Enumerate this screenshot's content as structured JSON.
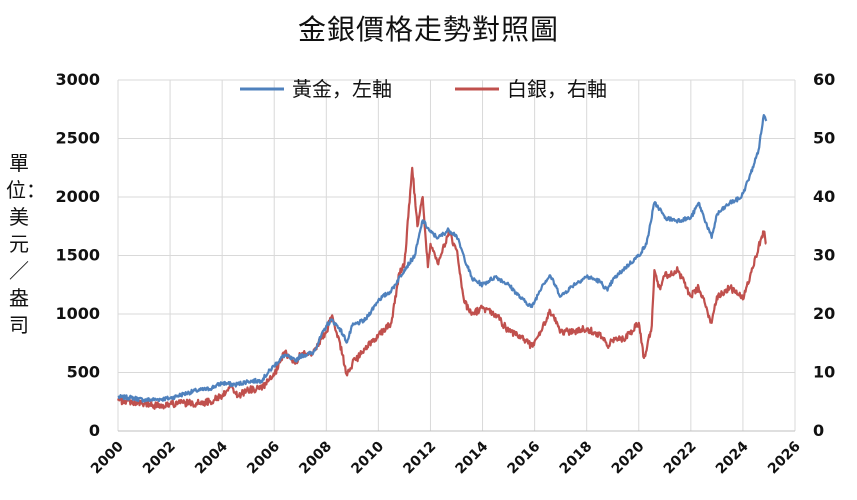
{
  "chart_data": {
    "type": "line",
    "title": "金銀價格走勢對照圖",
    "ylabel_left": "單位：美元／盎司",
    "ylim_left": [
      0,
      3000
    ],
    "ylim_right": [
      0,
      60
    ],
    "xlim": [
      2000,
      2026
    ],
    "grid": true,
    "legend": "top-center",
    "x_ticks": [
      "2000",
      "2002",
      "2004",
      "2006",
      "2008",
      "2010",
      "2012",
      "2014",
      "2016",
      "2018",
      "2020",
      "2022",
      "2024",
      "2026"
    ],
    "y_left_ticks": [
      "0",
      "500",
      "1000",
      "1500",
      "2000",
      "2500",
      "3000"
    ],
    "y_right_ticks": [
      "0",
      "10",
      "20",
      "30",
      "40",
      "50",
      "60"
    ],
    "series": [
      {
        "name": "黃金，左軸",
        "axis": "left",
        "color": "#4f81bd",
        "x": [
          2000.0,
          2000.5,
          2001.0,
          2001.5,
          2002.0,
          2002.5,
          2003.0,
          2003.5,
          2004.0,
          2004.5,
          2005.0,
          2005.5,
          2006.0,
          2006.4,
          2006.8,
          2007.0,
          2007.5,
          2008.0,
          2008.2,
          2008.5,
          2008.8,
          2009.0,
          2009.5,
          2010.0,
          2010.5,
          2011.0,
          2011.4,
          2011.7,
          2012.0,
          2012.3,
          2012.7,
          2013.0,
          2013.3,
          2013.6,
          2014.0,
          2014.5,
          2015.0,
          2015.5,
          2015.9,
          2016.3,
          2016.6,
          2017.0,
          2017.5,
          2018.0,
          2018.5,
          2018.8,
          2019.0,
          2019.5,
          2020.0,
          2020.3,
          2020.6,
          2020.8,
          2021.0,
          2021.5,
          2022.0,
          2022.3,
          2022.8,
          2023.0,
          2023.5,
          2023.9,
          2024.0,
          2024.3,
          2024.6,
          2024.8,
          2024.9
        ],
        "y": [
          290,
          285,
          265,
          270,
          280,
          315,
          345,
          360,
          410,
          395,
          425,
          430,
          560,
          650,
          600,
          640,
          670,
          900,
          950,
          880,
          760,
          900,
          950,
          1120,
          1200,
          1380,
          1500,
          1800,
          1700,
          1650,
          1720,
          1670,
          1480,
          1300,
          1250,
          1320,
          1250,
          1130,
          1060,
          1250,
          1330,
          1150,
          1250,
          1320,
          1280,
          1200,
          1290,
          1400,
          1500,
          1600,
          1950,
          1900,
          1820,
          1800,
          1820,
          1950,
          1650,
          1850,
          1950,
          1990,
          2030,
          2200,
          2400,
          2700,
          2650
        ]
      },
      {
        "name": "白銀，右軸",
        "axis": "right",
        "color": "#c0504d",
        "x": [
          2000.0,
          2000.5,
          2001.0,
          2001.5,
          2002.0,
          2002.5,
          2003.0,
          2003.5,
          2004.0,
          2004.3,
          2004.6,
          2005.0,
          2005.5,
          2006.0,
          2006.4,
          2006.8,
          2007.0,
          2007.5,
          2008.0,
          2008.2,
          2008.5,
          2008.8,
          2009.0,
          2009.5,
          2010.0,
          2010.5,
          2010.8,
          2011.0,
          2011.3,
          2011.5,
          2011.7,
          2011.9,
          2012.0,
          2012.3,
          2012.7,
          2013.0,
          2013.3,
          2013.6,
          2014.0,
          2014.5,
          2015.0,
          2015.5,
          2015.9,
          2016.3,
          2016.6,
          2017.0,
          2017.5,
          2018.0,
          2018.5,
          2018.8,
          2019.0,
          2019.5,
          2020.0,
          2020.2,
          2020.5,
          2020.6,
          2020.8,
          2021.0,
          2021.5,
          2022.0,
          2022.3,
          2022.8,
          2023.0,
          2023.5,
          2023.9,
          2024.0,
          2024.3,
          2024.6,
          2024.8,
          2024.9
        ],
        "y": [
          5.2,
          5.0,
          4.6,
          4.3,
          4.6,
          4.8,
          4.7,
          5.0,
          6.0,
          7.8,
          6.0,
          7.0,
          7.3,
          9.5,
          13.5,
          11.5,
          13.0,
          13.5,
          17.0,
          19.5,
          15.5,
          9.5,
          11.5,
          14.0,
          16.5,
          18.5,
          27.0,
          28.5,
          45.0,
          35.0,
          40.0,
          28.0,
          32.0,
          28.5,
          34.0,
          31.0,
          22.0,
          20.0,
          21.0,
          20.0,
          17.0,
          16.0,
          14.5,
          17.5,
          20.5,
          17.0,
          17.0,
          17.5,
          16.5,
          14.5,
          15.5,
          16.0,
          18.5,
          12.5,
          18.0,
          27.5,
          24.5,
          26.5,
          27.5,
          23.0,
          24.5,
          18.5,
          23.0,
          24.5,
          23.0,
          22.5,
          27.0,
          31.5,
          34.0,
          32.0
        ]
      }
    ]
  }
}
